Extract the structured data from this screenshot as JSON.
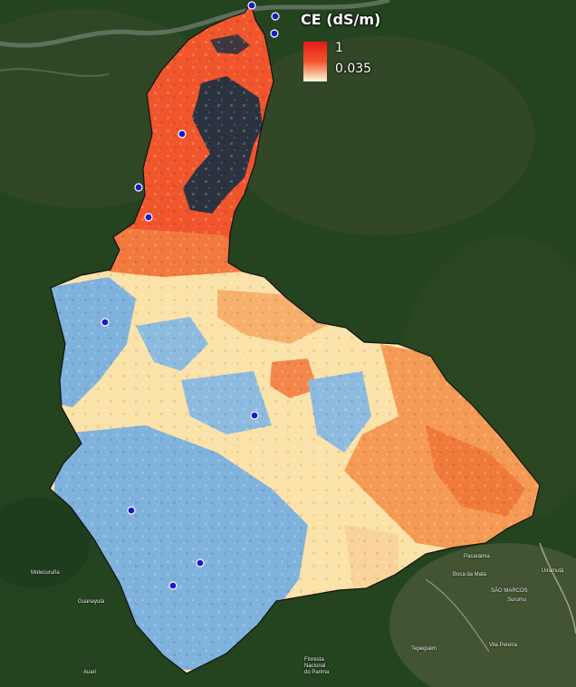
{
  "map": {
    "legend": {
      "title": "CE (dS/m)",
      "max_label": "1",
      "min_label": "0.035",
      "gradient_colors": [
        "#e41a1c",
        "#f4552c",
        "#fbe3c0",
        "#ffffff"
      ]
    },
    "classes": {
      "low": "#7fb2dc",
      "mid": "#fbe2a8",
      "high": "#f59a55",
      "very_high": "#f0552c",
      "water": "#2b3340"
    },
    "points_color": "#1a1ac8",
    "places": [
      {
        "name": "Motecuruña"
      },
      {
        "name": "Guanayuta"
      },
      {
        "name": "Auari"
      },
      {
        "name": "Floresta"
      },
      {
        "name": "Nacional"
      },
      {
        "name": "do Parima"
      },
      {
        "name": "Pacaraima"
      },
      {
        "name": "Boca da Mata"
      },
      {
        "name": "SÃO MARCOS"
      },
      {
        "name": "Surumu"
      },
      {
        "name": "Tepequém"
      },
      {
        "name": "Vila Pereira"
      },
      {
        "name": "Uiramutã"
      }
    ]
  }
}
